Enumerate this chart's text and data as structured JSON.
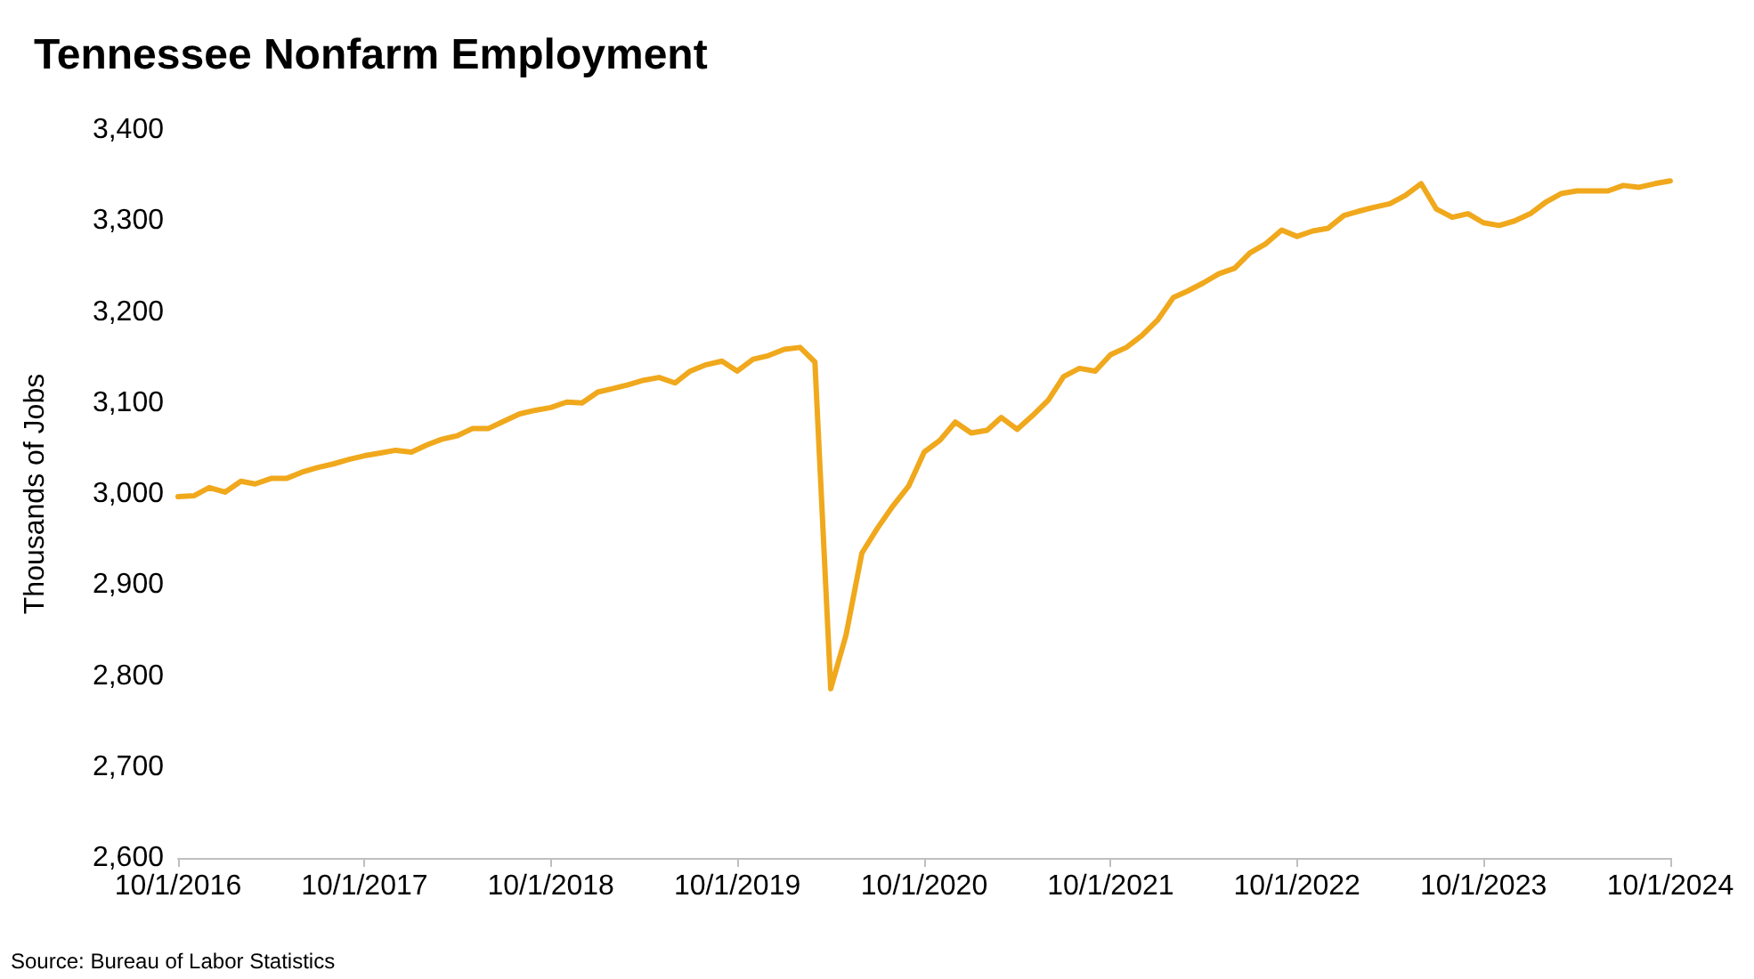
{
  "chart_data": {
    "type": "line",
    "title": "Tennessee Nonfarm Employment",
    "ylabel": "Thousands of Jobs",
    "annotations": [
      "Source: Bureau of Labor Statistics"
    ],
    "x": [
      "2016-10",
      "2016-11",
      "2016-12",
      "2017-01",
      "2017-02",
      "2017-03",
      "2017-04",
      "2017-05",
      "2017-06",
      "2017-07",
      "2017-08",
      "2017-09",
      "2017-10",
      "2017-11",
      "2017-12",
      "2018-01",
      "2018-02",
      "2018-03",
      "2018-04",
      "2018-05",
      "2018-06",
      "2018-07",
      "2018-08",
      "2018-09",
      "2018-10",
      "2018-11",
      "2018-12",
      "2019-01",
      "2019-02",
      "2019-03",
      "2019-04",
      "2019-05",
      "2019-06",
      "2019-07",
      "2019-08",
      "2019-09",
      "2019-10",
      "2019-11",
      "2019-12",
      "2020-01",
      "2020-02",
      "2020-03",
      "2020-04",
      "2020-05",
      "2020-06",
      "2020-07",
      "2020-08",
      "2020-09",
      "2020-10",
      "2020-11",
      "2020-12",
      "2021-01",
      "2021-02",
      "2021-03",
      "2021-04",
      "2021-05",
      "2021-06",
      "2021-07",
      "2021-08",
      "2021-09",
      "2021-10",
      "2021-11",
      "2021-12",
      "2022-01",
      "2022-02",
      "2022-03",
      "2022-04",
      "2022-05",
      "2022-06",
      "2022-07",
      "2022-08",
      "2022-09",
      "2022-10",
      "2022-11",
      "2022-12",
      "2023-01",
      "2023-02",
      "2023-03",
      "2023-04",
      "2023-05",
      "2023-06",
      "2023-07",
      "2023-08",
      "2023-09",
      "2023-10",
      "2023-11",
      "2023-12",
      "2024-01",
      "2024-02",
      "2024-03",
      "2024-04",
      "2024-05",
      "2024-06",
      "2024-07",
      "2024-08",
      "2024-09",
      "2024-10"
    ],
    "series": [
      {
        "color": "#f0a81c",
        "values": [
          2997,
          2998,
          3007,
          3002,
          3014,
          3011,
          3017,
          3017,
          3024,
          3029,
          3033,
          3038,
          3042,
          3045,
          3048,
          3046,
          3054,
          3060,
          3064,
          3072,
          3072,
          3080,
          3088,
          3092,
          3095,
          3101,
          3100,
          3112,
          3116,
          3120,
          3125,
          3128,
          3122,
          3135,
          3142,
          3146,
          3135,
          3148,
          3152,
          3159,
          3161,
          3145,
          2786,
          2845,
          2935,
          2962,
          2987,
          3009,
          3046,
          3059,
          3079,
          3067,
          3070,
          3084,
          3071,
          3086,
          3103,
          3129,
          3138,
          3135,
          3153,
          3161,
          3174,
          3191,
          3216,
          3223,
          3232,
          3242,
          3248,
          3265,
          3275,
          3290,
          3283,
          3289,
          3292,
          3306,
          3311,
          3315,
          3319,
          3328,
          3341,
          3313,
          3304,
          3308,
          3298,
          3295,
          3300,
          3308,
          3321,
          3330,
          3333,
          3333,
          3333,
          3339,
          3337,
          3341,
          3344
        ]
      }
    ],
    "xlim": [
      "2016-10-01",
      "2024-10-01"
    ],
    "xticks": [
      {
        "value": "2016-10-01",
        "label": "10/1/2016"
      },
      {
        "value": "2017-10-01",
        "label": "10/1/2017"
      },
      {
        "value": "2018-10-01",
        "label": "10/1/2018"
      },
      {
        "value": "2019-10-01",
        "label": "10/1/2019"
      },
      {
        "value": "2020-10-01",
        "label": "10/1/2020"
      },
      {
        "value": "2021-10-01",
        "label": "10/1/2021"
      },
      {
        "value": "2022-10-01",
        "label": "10/1/2022"
      },
      {
        "value": "2023-10-01",
        "label": "10/1/2023"
      },
      {
        "value": "2024-10-01",
        "label": "10/1/2024"
      }
    ],
    "ylim": [
      2600,
      3400
    ],
    "yticks": [
      {
        "value": 2600,
        "label": "2,600"
      },
      {
        "value": 2700,
        "label": "2,700"
      },
      {
        "value": 2800,
        "label": "2,800"
      },
      {
        "value": 2900,
        "label": "2,900"
      },
      {
        "value": 3000,
        "label": "3,000"
      },
      {
        "value": 3100,
        "label": "3,100"
      },
      {
        "value": 3200,
        "label": "3,200"
      },
      {
        "value": 3300,
        "label": "3,300"
      },
      {
        "value": 3400,
        "label": "3,400"
      }
    ],
    "grid": false,
    "marker": "none",
    "line_style": "solid"
  }
}
